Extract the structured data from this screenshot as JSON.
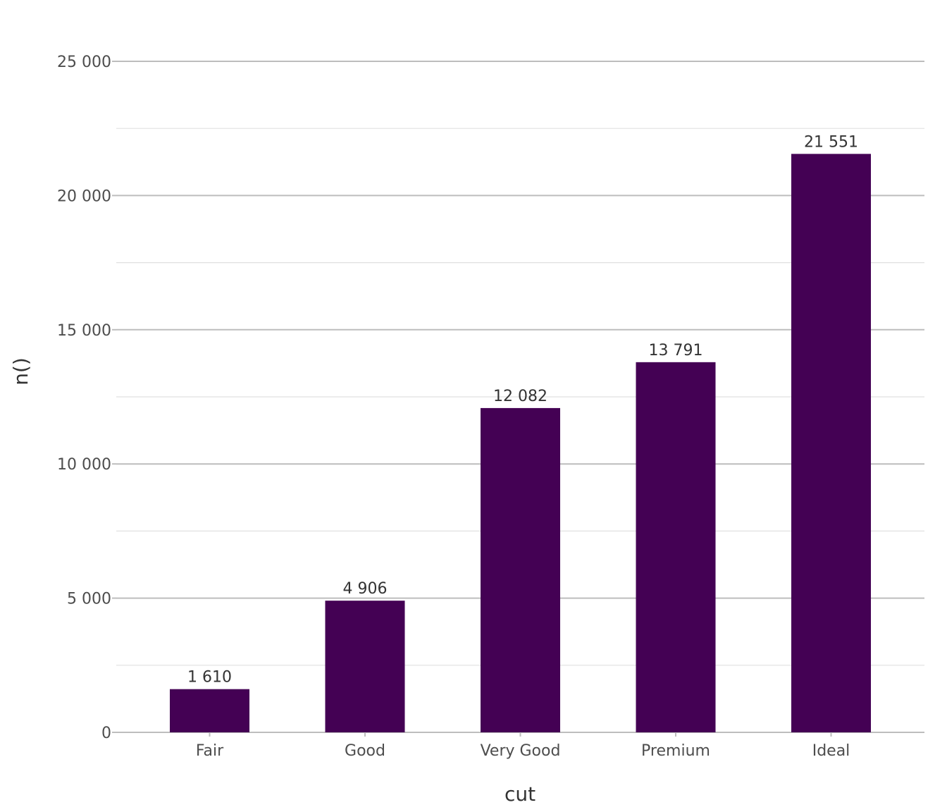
{
  "chart_data": {
    "type": "bar",
    "categories": [
      "Fair",
      "Good",
      "Very Good",
      "Premium",
      "Ideal"
    ],
    "values": [
      1610,
      4906,
      12082,
      13791,
      21551
    ],
    "value_labels": [
      "1 610",
      "4 906",
      "12 082",
      "13 791",
      "21 551"
    ],
    "xlabel": "cut",
    "ylabel": "n()",
    "ylim": [
      0,
      25000
    ],
    "y_ticks": [
      0,
      5000,
      10000,
      15000,
      20000,
      25000
    ],
    "y_tick_labels": [
      "0",
      "5 000",
      "10 000",
      "15 000",
      "20 000",
      "25 000"
    ],
    "grid": true,
    "legend": "none",
    "colors": {
      "bar": "#440154",
      "major_grid": "#bdbdbd",
      "minor_grid": "#e0e0e0"
    }
  }
}
